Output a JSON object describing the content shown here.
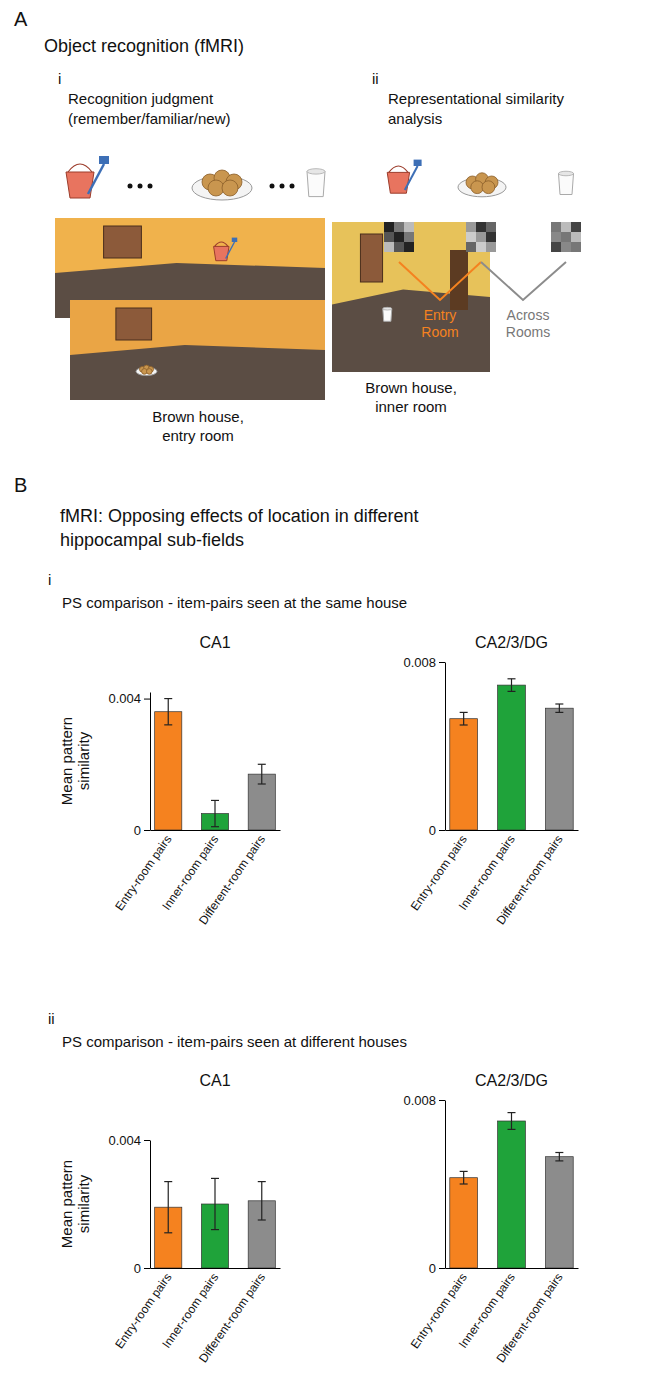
{
  "figure": {
    "panel_a": {
      "letter": "A",
      "title": "Object recognition (fMRI)",
      "sub_i": {
        "numeral": "i",
        "title": "Recognition judgment",
        "subtitle": "(remember/familiar/new)",
        "captions": [
          "Brown house, entry room",
          "Brown house, inner room"
        ]
      },
      "sub_ii": {
        "numeral": "ii",
        "title": "Representational similarity analysis",
        "labels": [
          "Entry Room",
          "Across Rooms"
        ]
      }
    },
    "panel_b": {
      "letter": "B",
      "title": "fMRI: Opposing effects of location in different hippocampal sub-fields",
      "sub_i": {
        "numeral": "i",
        "title": "PS comparison - item-pairs seen at the same house"
      },
      "sub_ii": {
        "numeral": "ii",
        "title": "PS comparison - item-pairs seen at different houses"
      }
    }
  },
  "chart_data": [
    {
      "type": "bar",
      "title": "CA1",
      "y_label": "Mean pattern similarity",
      "categories": [
        "Entry-room pairs",
        "Inner-room pairs",
        "Different-room pairs"
      ],
      "values": [
        0.0036,
        0.0005,
        0.0017
      ],
      "errors": [
        0.0004,
        0.0004,
        0.0003
      ],
      "colors": [
        "#f5821f",
        "#1fa33a",
        "#8c8c8c"
      ],
      "ylim": [
        0,
        0.0042
      ],
      "yticks": [
        0,
        0.004
      ]
    },
    {
      "type": "bar",
      "title": "CA2/3/DG",
      "categories": [
        "Entry-room pairs",
        "Inner-room pairs",
        "Different-room pairs"
      ],
      "values": [
        0.0053,
        0.0069,
        0.0058
      ],
      "errors": [
        0.0003,
        0.0003,
        0.0002
      ],
      "colors": [
        "#f5821f",
        "#1fa33a",
        "#8c8c8c"
      ],
      "ylim": [
        0,
        0.008
      ],
      "yticks": [
        0,
        0.008
      ]
    },
    {
      "type": "bar",
      "title": "CA1",
      "y_label": "Mean pattern similarity",
      "categories": [
        "Entry-room pairs",
        "Inner-room pairs",
        "Different-room pairs"
      ],
      "values": [
        0.0019,
        0.002,
        0.0021
      ],
      "errors": [
        0.0008,
        0.0008,
        0.0006
      ],
      "colors": [
        "#f5821f",
        "#1fa33a",
        "#8c8c8c"
      ],
      "ylim": [
        0,
        0.004
      ],
      "yticks": [
        0,
        0.004
      ]
    },
    {
      "type": "bar",
      "title": "CA2/3/DG",
      "categories": [
        "Entry-room pairs",
        "Inner-room pairs",
        "Different-room pairs"
      ],
      "values": [
        0.0043,
        0.007,
        0.0053
      ],
      "errors": [
        0.0003,
        0.0004,
        0.0002
      ],
      "colors": [
        "#f5821f",
        "#1fa33a",
        "#8c8c8c"
      ],
      "ylim": [
        0,
        0.008
      ],
      "yticks": [
        0,
        0.008
      ]
    }
  ]
}
